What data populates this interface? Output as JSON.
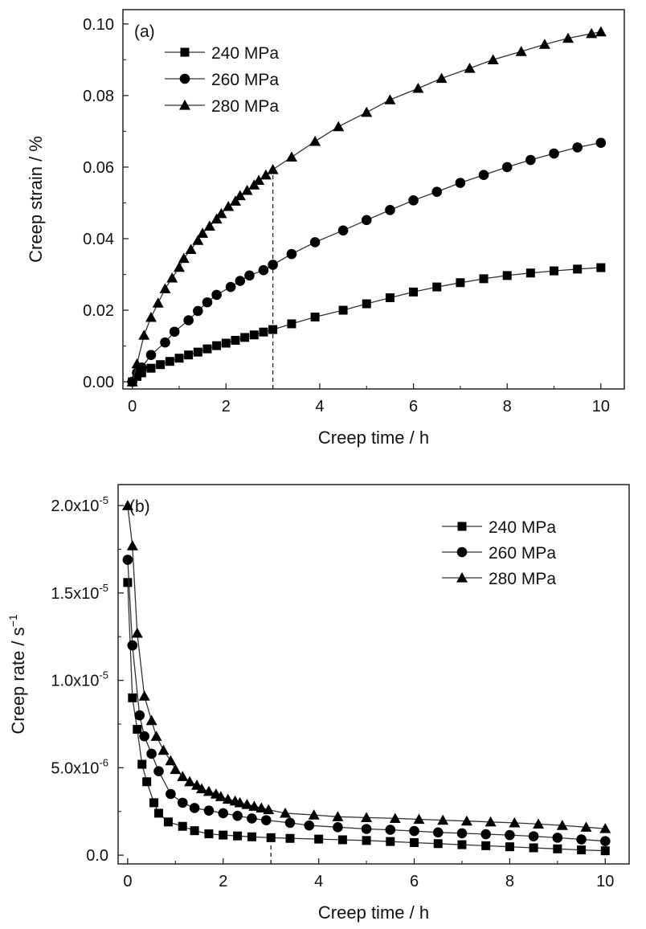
{
  "chart_data": [
    {
      "type": "line",
      "panel_label": "(a)",
      "xlabel": "Creep time / h",
      "ylabel": "Creep strain / %",
      "xlim": [
        -0.2,
        10.5
      ],
      "ylim": [
        -0.002,
        0.104
      ],
      "x_ticks": [
        "0",
        "2",
        "4",
        "6",
        "8",
        "10"
      ],
      "y_ticks": [
        "0.00",
        "0.02",
        "0.04",
        "0.06",
        "0.08",
        "0.10"
      ],
      "reference_line_x": 3,
      "legend_position": "top-left",
      "series": [
        {
          "name": "240 MPa",
          "marker": "square",
          "x": [
            0,
            0.1,
            0.2,
            0.4,
            0.6,
            0.8,
            1.0,
            1.2,
            1.4,
            1.6,
            1.8,
            2.0,
            2.2,
            2.4,
            2.6,
            2.8,
            3.0,
            3.4,
            3.9,
            4.5,
            5.0,
            5.5,
            6.0,
            6.5,
            7.0,
            7.5,
            8.0,
            8.5,
            9.0,
            9.5,
            10.0
          ],
          "y": [
            0.0,
            0.0015,
            0.0025,
            0.0038,
            0.0048,
            0.0057,
            0.0066,
            0.0075,
            0.0083,
            0.0092,
            0.0101,
            0.0108,
            0.0116,
            0.0124,
            0.0131,
            0.0139,
            0.0146,
            0.0162,
            0.0181,
            0.02,
            0.0218,
            0.0235,
            0.0251,
            0.0265,
            0.0277,
            0.0288,
            0.0297,
            0.0304,
            0.031,
            0.0315,
            0.0319
          ]
        },
        {
          "name": "260 MPa",
          "marker": "circle",
          "x": [
            0,
            0.1,
            0.2,
            0.4,
            0.7,
            0.9,
            1.2,
            1.4,
            1.6,
            1.8,
            2.1,
            2.3,
            2.5,
            2.8,
            3.0,
            3.4,
            3.9,
            4.5,
            5.0,
            5.5,
            6.0,
            6.5,
            7.0,
            7.5,
            8.0,
            8.5,
            9.0,
            9.5,
            10.0
          ],
          "y": [
            0.0,
            0.0025,
            0.004,
            0.0075,
            0.011,
            0.014,
            0.0172,
            0.0198,
            0.0222,
            0.0243,
            0.0265,
            0.0282,
            0.0297,
            0.0312,
            0.0327,
            0.0357,
            0.039,
            0.0423,
            0.0452,
            0.048,
            0.0507,
            0.0531,
            0.0556,
            0.0578,
            0.06,
            0.062,
            0.0638,
            0.0655,
            0.0668
          ]
        },
        {
          "name": "280 MPa",
          "marker": "triangle",
          "x": [
            0,
            0.1,
            0.25,
            0.4,
            0.55,
            0.7,
            0.85,
            1.0,
            1.1,
            1.25,
            1.4,
            1.5,
            1.65,
            1.8,
            1.9,
            2.05,
            2.2,
            2.3,
            2.45,
            2.6,
            2.7,
            2.85,
            3.0,
            3.4,
            3.9,
            4.4,
            5.0,
            5.5,
            6.1,
            6.6,
            7.2,
            7.7,
            8.3,
            8.8,
            9.3,
            9.8,
            10.0
          ],
          "y": [
            0.0,
            0.005,
            0.013,
            0.018,
            0.022,
            0.026,
            0.029,
            0.032,
            0.0345,
            0.037,
            0.0395,
            0.0415,
            0.0435,
            0.0455,
            0.047,
            0.049,
            0.0505,
            0.052,
            0.0535,
            0.055,
            0.0563,
            0.0578,
            0.0593,
            0.0628,
            0.0672,
            0.0713,
            0.0753,
            0.0788,
            0.082,
            0.0848,
            0.0876,
            0.09,
            0.0923,
            0.0943,
            0.096,
            0.0973,
            0.0978
          ]
        }
      ]
    },
    {
      "type": "line",
      "panel_label": "(b)",
      "xlabel": "Creep time / h",
      "ylabel": "Creep rate / s",
      "ylabel_superscript": "−1",
      "xlim": [
        -0.2,
        10.5
      ],
      "ylim": [
        -5e-07,
        2.12e-05
      ],
      "x_ticks": [
        "0",
        "2",
        "4",
        "6",
        "8",
        "10"
      ],
      "y_ticks": [
        {
          "value": 0.0,
          "base": "0.0",
          "exp": ""
        },
        {
          "value": 5e-06,
          "base": "5.0x10",
          "exp": "-6"
        },
        {
          "value": 1e-05,
          "base": "1.0x10",
          "exp": "-5"
        },
        {
          "value": 1.5e-05,
          "base": "1.5x10",
          "exp": "-5"
        },
        {
          "value": 2e-05,
          "base": "2.0x10",
          "exp": "-5"
        }
      ],
      "reference_line_x": 3,
      "legend_position": "top-right",
      "series": [
        {
          "name": "240 MPa",
          "marker": "square",
          "x": [
            0,
            0.1,
            0.2,
            0.3,
            0.4,
            0.55,
            0.65,
            0.85,
            1.15,
            1.4,
            1.7,
            2.0,
            2.3,
            2.6,
            3.0,
            3.4,
            4.0,
            4.5,
            5.0,
            5.5,
            6.0,
            6.5,
            7.0,
            7.5,
            8.0,
            8.5,
            9.0,
            9.5,
            10.0
          ],
          "y": [
            1.56e-05,
            9e-06,
            7.2e-06,
            5.2e-06,
            4.2e-06,
            3e-06,
            2.4e-06,
            1.9e-06,
            1.65e-06,
            1.4e-06,
            1.22e-06,
            1.15e-06,
            1.1e-06,
            1.05e-06,
            1e-06,
            9.6e-07,
            9.2e-07,
            8.8e-07,
            8.4e-07,
            7.8e-07,
            7.2e-07,
            6.6e-07,
            6e-07,
            5.4e-07,
            4.8e-07,
            4.2e-07,
            3.6e-07,
            3e-07,
            2.5e-07
          ]
        },
        {
          "name": "260 MPa",
          "marker": "circle",
          "x": [
            0,
            0.1,
            0.25,
            0.35,
            0.5,
            0.65,
            0.9,
            1.15,
            1.4,
            1.7,
            2.0,
            2.3,
            2.6,
            2.9,
            3.4,
            3.8,
            4.4,
            5.0,
            5.5,
            6.0,
            6.5,
            7.0,
            7.5,
            8.0,
            8.5,
            9.0,
            9.5,
            10.0
          ],
          "y": [
            1.69e-05,
            1.2e-05,
            8e-06,
            6.8e-06,
            5.8e-06,
            4.8e-06,
            3.5e-06,
            3e-06,
            2.7e-06,
            2.55e-06,
            2.4e-06,
            2.25e-06,
            2.1e-06,
            2e-06,
            1.85e-06,
            1.7e-06,
            1.6e-06,
            1.5e-06,
            1.45e-06,
            1.38e-06,
            1.3e-06,
            1.25e-06,
            1.2e-06,
            1.15e-06,
            1.08e-06,
            1e-06,
            9e-07,
            8e-07
          ]
        },
        {
          "name": "280 MPa",
          "marker": "triangle",
          "x": [
            0,
            0.1,
            0.2,
            0.35,
            0.5,
            0.6,
            0.75,
            0.9,
            1.0,
            1.15,
            1.3,
            1.45,
            1.55,
            1.7,
            1.85,
            1.95,
            2.1,
            2.25,
            2.35,
            2.5,
            2.65,
            2.8,
            2.95,
            3.3,
            3.9,
            4.4,
            5.0,
            5.6,
            6.1,
            6.6,
            7.1,
            7.6,
            8.1,
            8.6,
            9.1,
            9.6,
            10.0
          ],
          "y": [
            2e-05,
            1.77e-05,
            1.27e-05,
            9.1e-06,
            7.7e-06,
            6.8e-06,
            6e-06,
            5.4e-06,
            4.9e-06,
            4.5e-06,
            4.2e-06,
            4e-06,
            3.8e-06,
            3.65e-06,
            3.5e-06,
            3.35e-06,
            3.2e-06,
            3.1e-06,
            3e-06,
            2.9e-06,
            2.8e-06,
            2.7e-06,
            2.6e-06,
            2.4e-06,
            2.3e-06,
            2.2e-06,
            2.15e-06,
            2.1e-06,
            2.05e-06,
            2e-06,
            1.95e-06,
            1.9e-06,
            1.85e-06,
            1.78e-06,
            1.7e-06,
            1.6e-06,
            1.52e-06
          ]
        }
      ]
    }
  ]
}
